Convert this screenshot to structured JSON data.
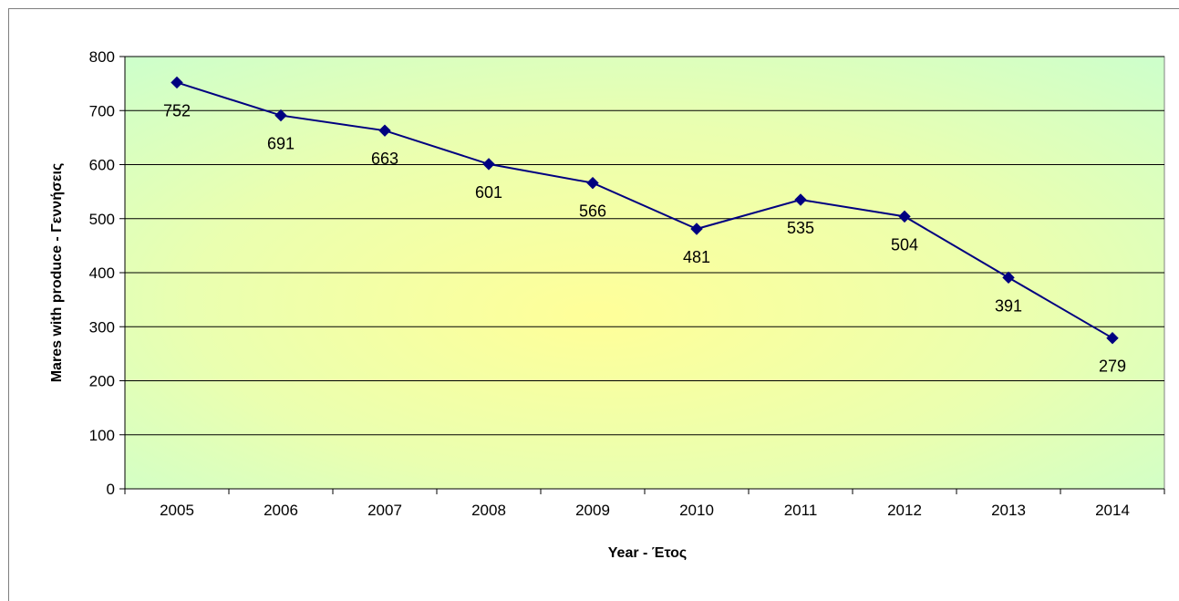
{
  "chart_data": {
    "type": "line",
    "categories": [
      "2005",
      "2006",
      "2007",
      "2008",
      "2009",
      "2010",
      "2011",
      "2012",
      "2013",
      "2014"
    ],
    "series": [
      {
        "name": "",
        "values": [
          752,
          691,
          663,
          601,
          566,
          481,
          535,
          504,
          391,
          279
        ]
      }
    ],
    "data_labels": [
      "752",
      "691",
      "663",
      "601",
      "566",
      "481",
      "535",
      "504",
      "391",
      "279"
    ],
    "title": "",
    "xlabel": "Year - Έτος",
    "ylabel": "Mares with  produce - Γεννήσεις",
    "ylim": [
      0,
      800
    ],
    "yticks": [
      "0",
      "100",
      "200",
      "300",
      "400",
      "500",
      "600",
      "700",
      "800"
    ],
    "grid": true,
    "legend": "none",
    "colors": {
      "line": "#000080",
      "marker": "#000080",
      "gridline": "#000000",
      "background_center": "#ffff99",
      "background_edge": "#ccffcc"
    }
  }
}
